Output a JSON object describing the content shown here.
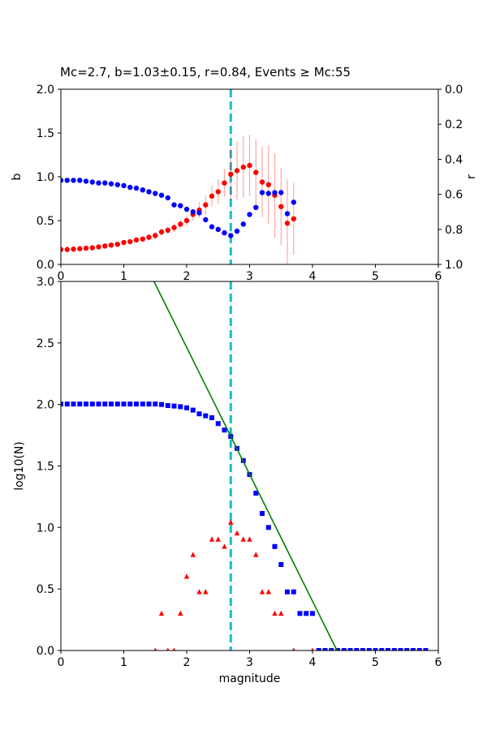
{
  "title": "Mc=2.7, b=1.03±0.15, r=0.84, Events ≥ Mc:55",
  "colors": {
    "b_value_marker": "#ff0000",
    "r_value_marker": "#0000ff",
    "error_bar": "rgba(255,0,0,0.35)",
    "cumulative_marker": "#0000ff",
    "bin_marker": "#ff0000",
    "fit_line": "#008000",
    "mc_cutoff_line": "#14bec8",
    "axes": "#000000",
    "background": "#ffffff"
  },
  "chart_data": [
    {
      "type": "scatter",
      "title": "Mc=2.7, b=1.03±0.15, r=0.84, Events ≥ Mc:55",
      "xlabel": "",
      "ylabel": "b",
      "rlabel": "r",
      "xlim": [
        0,
        6
      ],
      "ylim": [
        0,
        2
      ],
      "rlim": [
        0,
        1
      ],
      "r_axis_inverted": true,
      "grid": false,
      "legend": "none",
      "xticks": [
        0,
        1,
        2,
        3,
        4,
        5,
        6
      ],
      "xtick_labels": [
        "0",
        "1",
        "2",
        "3",
        "4",
        "5",
        "6"
      ],
      "yticks": [
        0,
        0.5,
        1,
        1.5,
        2
      ],
      "ytick_labels": [
        "0.0",
        "0.5",
        "1.0",
        "1.5",
        "2.0"
      ],
      "rticks": [
        0,
        0.2,
        0.4,
        0.6,
        0.8,
        1
      ],
      "rtick_labels": [
        "0.0",
        "0.2",
        "0.4",
        "0.6",
        "0.8",
        "1.0"
      ],
      "vline": {
        "x": 2.7,
        "color": "#14bec8",
        "style": "dashed",
        "name": "mc-cutoff-line"
      },
      "series": [
        {
          "name": "b-value-vs-cutoff-magnitude",
          "marker": "circle",
          "color": "#ff0000",
          "axis": "left",
          "err_color": "rgba(255,0,0,0.35)",
          "x": [
            0,
            0.1,
            0.2,
            0.3,
            0.4,
            0.5,
            0.6,
            0.7,
            0.8,
            0.9,
            1,
            1.1,
            1.2,
            1.3,
            1.4,
            1.5,
            1.6,
            1.7,
            1.8,
            1.9,
            2,
            2.1,
            2.2,
            2.3,
            2.4,
            2.5,
            2.6,
            2.7,
            2.8,
            2.9,
            3,
            3.1,
            3.2,
            3.3,
            3.4,
            3.5,
            3.6,
            3.7
          ],
          "y": [
            0.17,
            0.17,
            0.175,
            0.18,
            0.185,
            0.19,
            0.2,
            0.21,
            0.22,
            0.23,
            0.25,
            0.26,
            0.28,
            0.29,
            0.31,
            0.33,
            0.37,
            0.39,
            0.42,
            0.46,
            0.5,
            0.57,
            0.62,
            0.68,
            0.78,
            0.83,
            0.93,
            1.03,
            1.07,
            1.11,
            1.13,
            1.05,
            0.94,
            0.91,
            0.79,
            0.66,
            0.47,
            0.52
          ],
          "yerr": [
            0.01,
            0.01,
            0.01,
            0.01,
            0.01,
            0.015,
            0.015,
            0.02,
            0.02,
            0.02,
            0.025,
            0.025,
            0.03,
            0.03,
            0.035,
            0.04,
            0.04,
            0.045,
            0.05,
            0.055,
            0.06,
            0.07,
            0.09,
            0.11,
            0.12,
            0.14,
            0.16,
            0.3,
            0.33,
            0.35,
            0.35,
            0.38,
            0.4,
            0.45,
            0.48,
            0.44,
            0.5,
            0.41
          ]
        },
        {
          "name": "r-value-vs-cutoff-magnitude",
          "marker": "circle",
          "color": "#0000ff",
          "axis": "right",
          "x": [
            0,
            0.1,
            0.2,
            0.3,
            0.4,
            0.5,
            0.6,
            0.7,
            0.8,
            0.9,
            1,
            1.1,
            1.2,
            1.3,
            1.4,
            1.5,
            1.6,
            1.7,
            1.8,
            1.9,
            2,
            2.1,
            2.2,
            2.3,
            2.4,
            2.5,
            2.6,
            2.7,
            2.8,
            2.9,
            3,
            3.1,
            3.2,
            3.3,
            3.4,
            3.5,
            3.6,
            3.7
          ],
          "y": [
            0.52,
            0.52,
            0.52,
            0.52,
            0.525,
            0.53,
            0.535,
            0.535,
            0.54,
            0.545,
            0.55,
            0.56,
            0.565,
            0.575,
            0.585,
            0.595,
            0.605,
            0.62,
            0.66,
            0.665,
            0.685,
            0.7,
            0.705,
            0.745,
            0.785,
            0.8,
            0.82,
            0.835,
            0.81,
            0.77,
            0.715,
            0.675,
            0.59,
            0.595,
            0.59,
            0.59,
            0.71,
            0.645
          ]
        }
      ]
    },
    {
      "type": "scatter",
      "title": "",
      "xlabel": "magnitude",
      "ylabel": "log10(N)",
      "xlim": [
        0,
        6
      ],
      "ylim": [
        0,
        3
      ],
      "grid": false,
      "legend": "none",
      "xticks": [
        0,
        1,
        2,
        3,
        4,
        5,
        6
      ],
      "xtick_labels": [
        "0",
        "1",
        "2",
        "3",
        "4",
        "5",
        "6"
      ],
      "yticks": [
        0,
        0.5,
        1,
        1.5,
        2,
        2.5,
        3
      ],
      "ytick_labels": [
        "0.0",
        "0.5",
        "1.0",
        "1.5",
        "2.0",
        "2.5",
        "3.0"
      ],
      "vline": {
        "x": 2.7,
        "color": "#14bec8",
        "style": "dashed",
        "name": "mc-cutoff-line"
      },
      "series": [
        {
          "name": "cumulative-event-count",
          "marker": "square",
          "color": "#0000ff",
          "axis": "left",
          "x": [
            0,
            0.1,
            0.2,
            0.3,
            0.4,
            0.5,
            0.6,
            0.7,
            0.8,
            0.9,
            1,
            1.1,
            1.2,
            1.3,
            1.4,
            1.5,
            1.6,
            1.7,
            1.8,
            1.9,
            2,
            2.1,
            2.2,
            2.3,
            2.4,
            2.5,
            2.6,
            2.7,
            2.8,
            2.9,
            3,
            3.1,
            3.2,
            3.3,
            3.4,
            3.5,
            3.6,
            3.7,
            3.8,
            3.9,
            4,
            4.1,
            4.2,
            4.3,
            4.4,
            4.5,
            4.6,
            4.7,
            4.8,
            4.9,
            5,
            5.1,
            5.2,
            5.3,
            5.4,
            5.5,
            5.6,
            5.7,
            5.8
          ],
          "y": [
            2.004,
            2.004,
            2.004,
            2.004,
            2.004,
            2.004,
            2.004,
            2.004,
            2.004,
            2.004,
            2.004,
            2.004,
            2.004,
            2.004,
            2.004,
            2.004,
            2.0,
            1.991,
            1.987,
            1.982,
            1.973,
            1.954,
            1.924,
            1.908,
            1.892,
            1.845,
            1.792,
            1.74,
            1.643,
            1.544,
            1.431,
            1.279,
            1.114,
            1.0,
            0.845,
            0.699,
            0.477,
            0.477,
            0.301,
            0.301,
            0.301,
            0,
            0,
            0,
            0,
            0,
            0,
            0,
            0,
            0,
            0,
            0,
            0,
            0,
            0,
            0,
            0,
            0,
            0
          ],
          "counts": [
            101,
            101,
            101,
            101,
            101,
            101,
            101,
            101,
            101,
            101,
            101,
            101,
            101,
            101,
            101,
            101,
            100,
            98,
            97,
            96,
            94,
            90,
            84,
            81,
            78,
            70,
            62,
            55,
            44,
            35,
            27,
            19,
            13,
            10,
            7,
            5,
            3,
            3,
            2,
            2,
            2,
            1,
            1,
            1,
            1,
            1,
            1,
            1,
            1,
            1,
            1,
            1,
            1,
            1,
            1,
            1,
            1,
            1,
            1
          ]
        },
        {
          "name": "per-bin-event-count",
          "marker": "triangle",
          "color": "#ff0000",
          "axis": "left",
          "x": [
            1.5,
            1.6,
            1.7,
            1.8,
            1.9,
            2,
            2.1,
            2.2,
            2.3,
            2.4,
            2.5,
            2.6,
            2.7,
            2.8,
            2.9,
            3,
            3.1,
            3.2,
            3.3,
            3.4,
            3.5,
            3.7,
            4
          ],
          "y": [
            0,
            0.301,
            0,
            0,
            0.301,
            0.602,
            0.778,
            0.477,
            0.477,
            0.903,
            0.903,
            0.845,
            1.041,
            0.954,
            0.903,
            0.903,
            0.778,
            0.477,
            0.477,
            0.301,
            0.301,
            0,
            0
          ],
          "counts": [
            1,
            2,
            1,
            1,
            2,
            4,
            6,
            3,
            3,
            8,
            8,
            7,
            11,
            9,
            8,
            8,
            6,
            3,
            3,
            2,
            2,
            1,
            1
          ]
        },
        {
          "name": "gutenberg-richter-fit",
          "type": "line",
          "marker": "none",
          "color": "#008000",
          "axis": "left",
          "x": [
            1.48,
            4.39
          ],
          "y": [
            3.0,
            0.0
          ]
        }
      ]
    }
  ]
}
